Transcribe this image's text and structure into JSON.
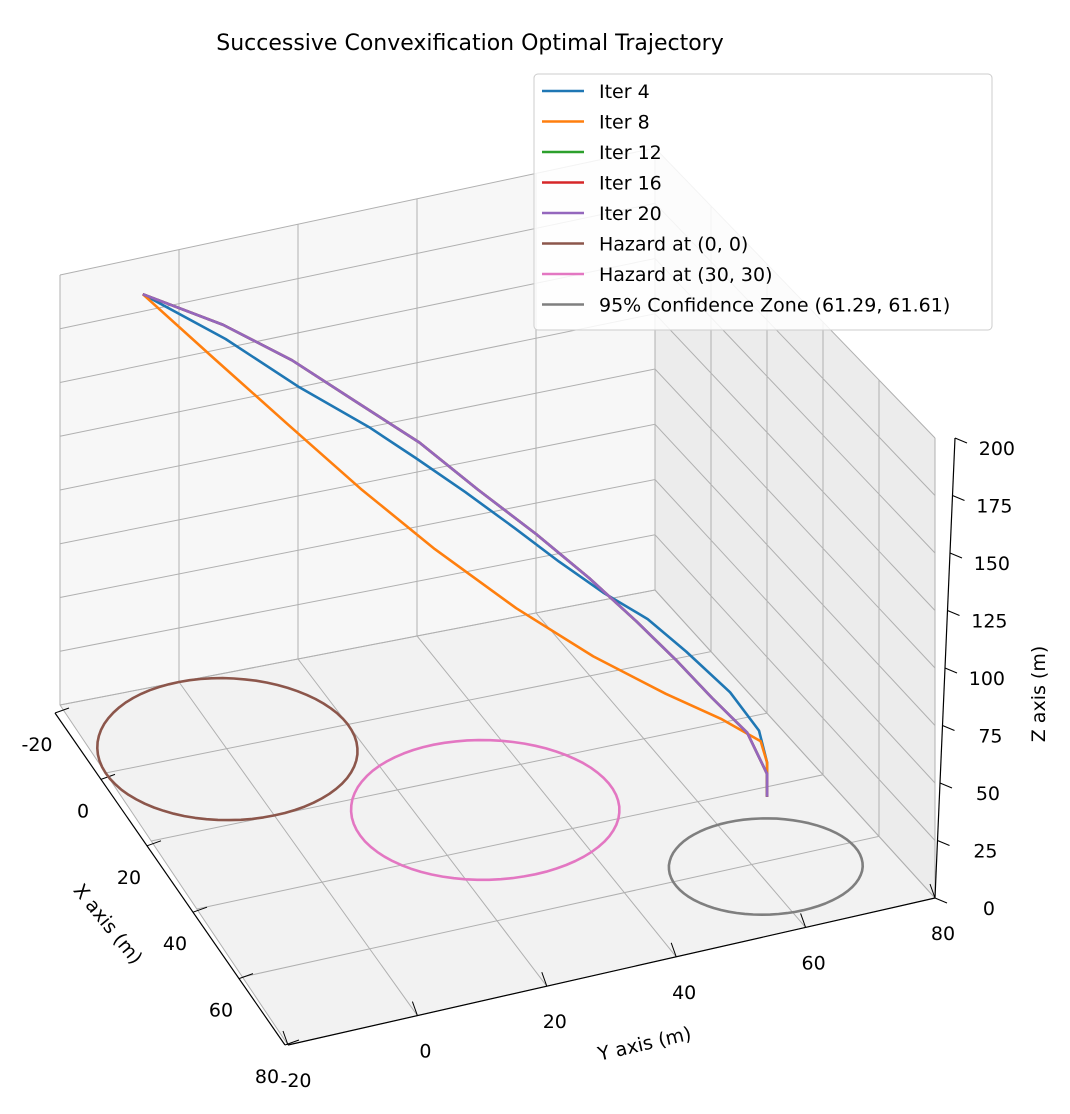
{
  "chart_data": {
    "type": "line3d",
    "title": "Successive Convexification Optimal Trajectory",
    "xlabel": "X axis (m)",
    "ylabel": "Y axis (m)",
    "zlabel": "Z axis (m)",
    "xlim": [
      -20,
      80
    ],
    "ylim": [
      -20,
      80
    ],
    "zlim": [
      0,
      200
    ],
    "x_ticks": [
      -20,
      0,
      20,
      40,
      60,
      80
    ],
    "y_ticks": [
      -20,
      0,
      20,
      40,
      60,
      80
    ],
    "z_ticks": [
      0,
      25,
      50,
      75,
      100,
      125,
      150,
      175,
      200
    ],
    "grid": true,
    "legend_position": "top-right",
    "series": [
      {
        "name": "Iter 4",
        "color": "#1f77b4",
        "points": [
          [
            -10,
            -10,
            200
          ],
          [
            -3,
            1,
            183
          ],
          [
            5,
            10,
            167
          ],
          [
            11,
            19,
            152
          ],
          [
            15,
            25,
            140
          ],
          [
            20,
            31,
            128
          ],
          [
            25,
            37,
            115
          ],
          [
            30,
            42,
            104
          ],
          [
            35,
            47,
            94
          ],
          [
            40,
            52,
            86
          ],
          [
            45,
            56,
            76
          ],
          [
            52,
            60,
            65
          ],
          [
            58,
            62,
            55
          ],
          [
            61,
            62,
            45
          ],
          [
            61,
            62,
            30
          ]
        ]
      },
      {
        "name": "Iter 8",
        "color": "#ff7f0e",
        "points": [
          [
            -10,
            -10,
            200
          ],
          [
            0,
            -2,
            180
          ],
          [
            10,
            6,
            160
          ],
          [
            20,
            14,
            140
          ],
          [
            30,
            22,
            122
          ],
          [
            40,
            31,
            104
          ],
          [
            48,
            40,
            88
          ],
          [
            54,
            49,
            74
          ],
          [
            58,
            56,
            64
          ],
          [
            61,
            61,
            55
          ],
          [
            61,
            62,
            45
          ],
          [
            61,
            62,
            30
          ]
        ]
      },
      {
        "name": "Iter 12",
        "color": "#2ca02c",
        "points": [
          [
            -10,
            -10,
            200
          ],
          [
            -4,
            1,
            188
          ],
          [
            2,
            10,
            175
          ],
          [
            8,
            18,
            160
          ],
          [
            14,
            26,
            145
          ],
          [
            20,
            33,
            128
          ],
          [
            26,
            40,
            112
          ],
          [
            32,
            46,
            97
          ],
          [
            38,
            51,
            83
          ],
          [
            44,
            55,
            71
          ],
          [
            50,
            58,
            61
          ],
          [
            56,
            61,
            52
          ],
          [
            61,
            62,
            40
          ],
          [
            61,
            62,
            30
          ]
        ]
      },
      {
        "name": "Iter 16",
        "color": "#d62728",
        "points": [
          [
            -10,
            -10,
            200
          ],
          [
            -4,
            1,
            188
          ],
          [
            2,
            10,
            175
          ],
          [
            8,
            18,
            160
          ],
          [
            14,
            26,
            145
          ],
          [
            20,
            33,
            128
          ],
          [
            26,
            40,
            112
          ],
          [
            32,
            46,
            97
          ],
          [
            38,
            51,
            83
          ],
          [
            44,
            55,
            71
          ],
          [
            50,
            58,
            61
          ],
          [
            56,
            61,
            52
          ],
          [
            61,
            62,
            40
          ],
          [
            61,
            62,
            30
          ]
        ]
      },
      {
        "name": "Iter 20",
        "color": "#9467bd",
        "points": [
          [
            -10,
            -10,
            200
          ],
          [
            -4,
            1,
            188
          ],
          [
            2,
            10,
            175
          ],
          [
            8,
            18,
            160
          ],
          [
            14,
            26,
            145
          ],
          [
            20,
            33,
            128
          ],
          [
            26,
            40,
            112
          ],
          [
            32,
            46,
            97
          ],
          [
            38,
            51,
            83
          ],
          [
            44,
            55,
            71
          ],
          [
            50,
            58,
            61
          ],
          [
            56,
            61,
            52
          ],
          [
            61,
            62,
            40
          ],
          [
            61,
            62,
            30
          ]
        ]
      },
      {
        "name": "Hazard at (0, 0)",
        "color": "#8c564b",
        "circle": {
          "cx": 0,
          "cy": 0,
          "r": 20,
          "z": 0
        }
      },
      {
        "name": "Hazard at (30, 30)",
        "color": "#e377c2",
        "circle": {
          "cx": 30,
          "cy": 30,
          "r": 20,
          "z": 0
        }
      },
      {
        "name": "95% Confidence Zone (61.29, 61.61)",
        "color": "#7f7f7f",
        "circle": {
          "cx": 61.29,
          "cy": 61.61,
          "r": 14,
          "z": 0
        }
      }
    ]
  }
}
